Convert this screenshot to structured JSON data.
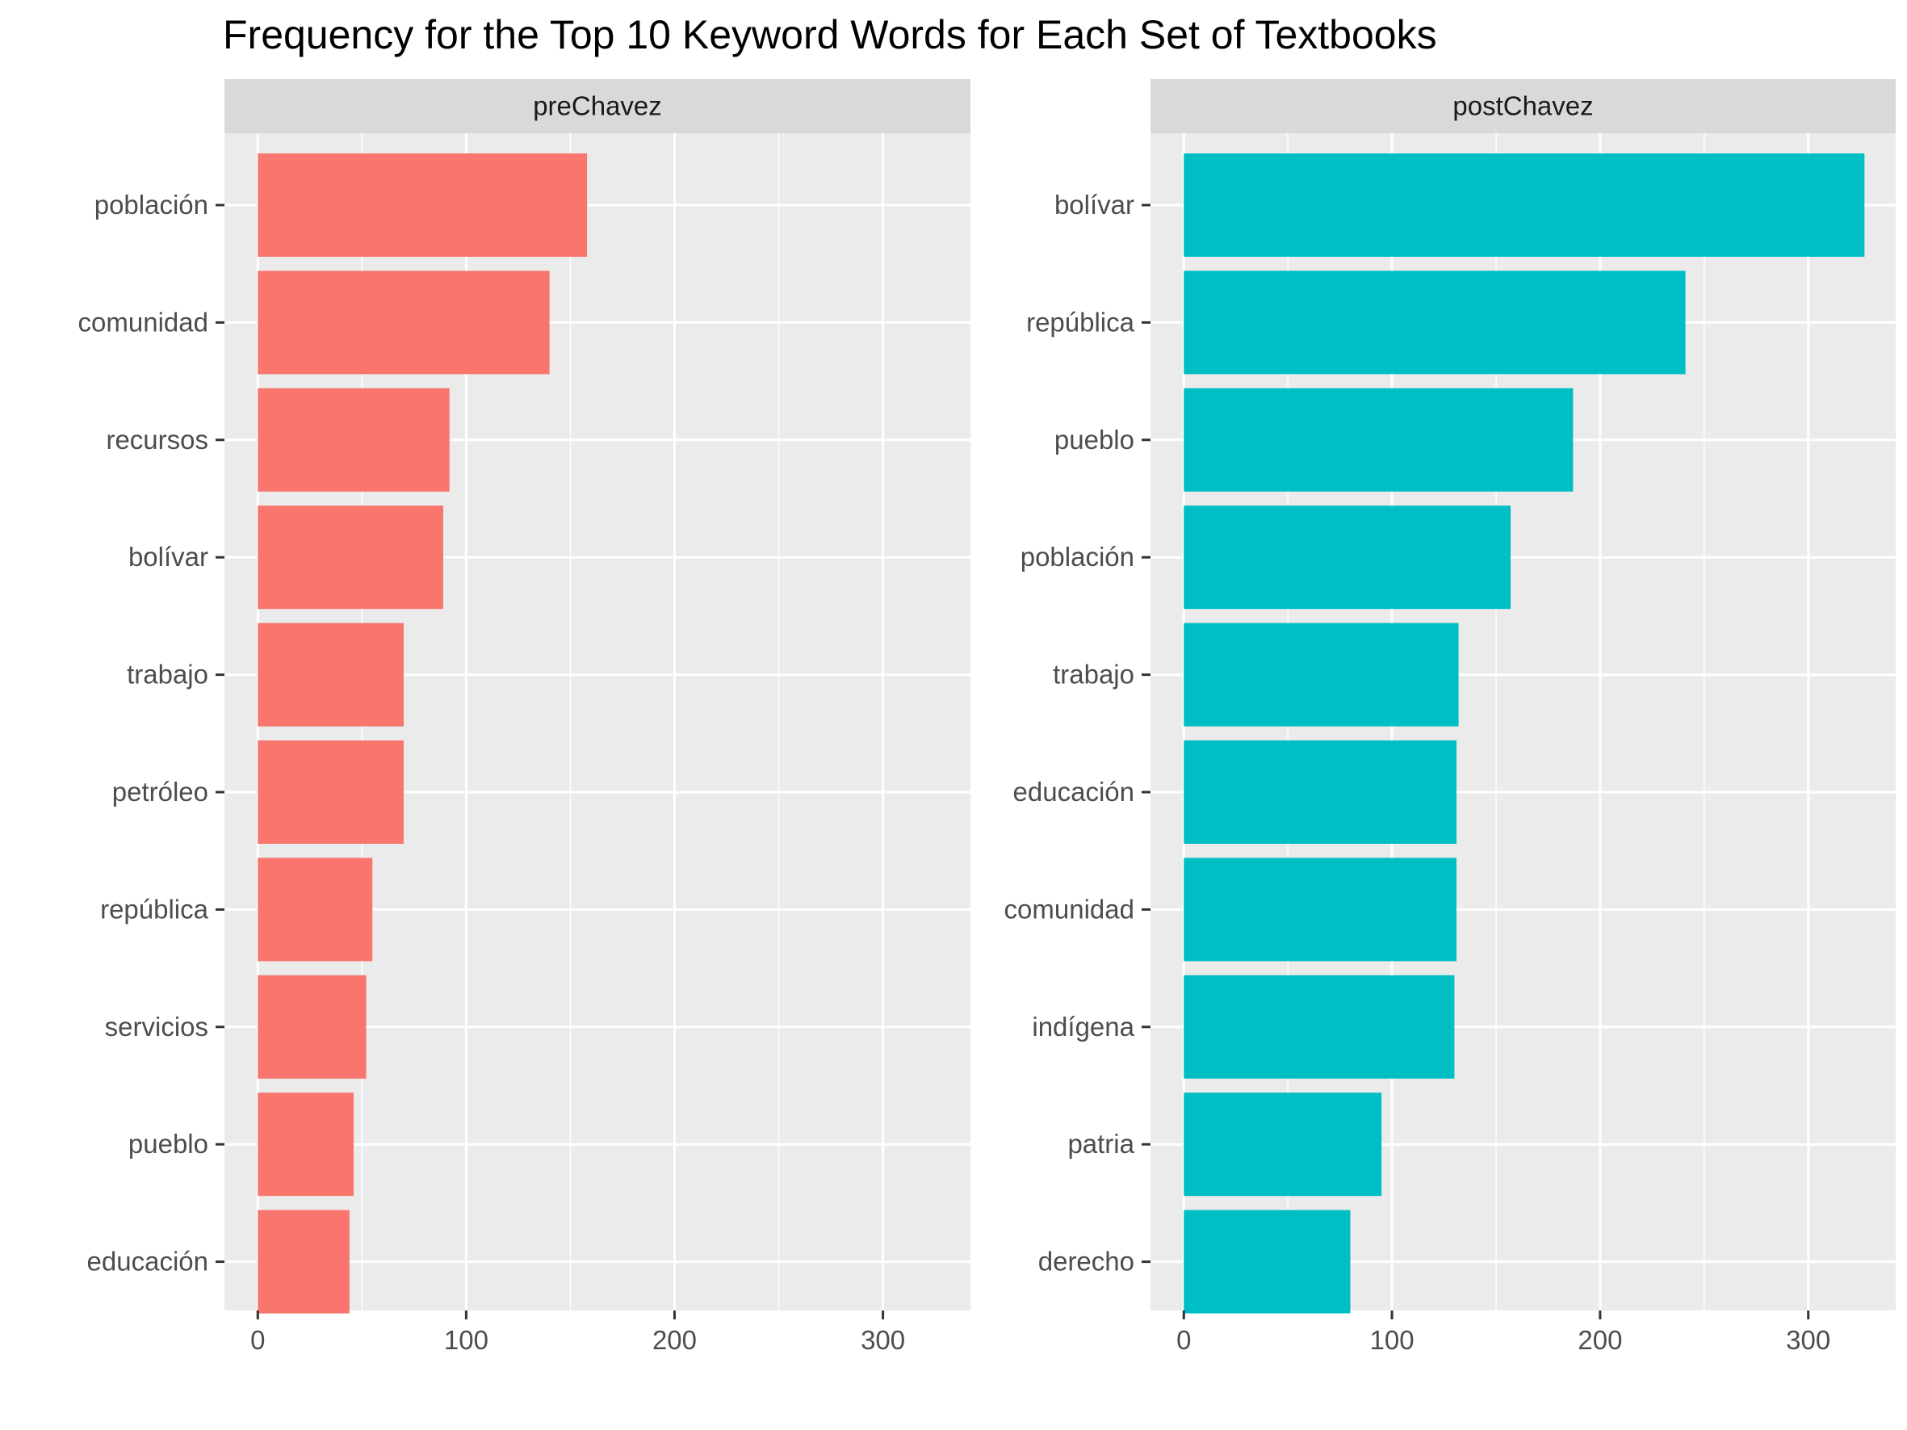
{
  "chart_data": {
    "type": "bar",
    "orientation": "horizontal",
    "title": "Frequency for the Top 10 Keyword Words for Each Set of Textbooks",
    "xlim": [
      -16,
      342
    ],
    "x_ticks": [
      0,
      100,
      200,
      300
    ],
    "grid": true,
    "facets": [
      {
        "name": "preChavez",
        "color": "#F8766D",
        "categories": [
          "población",
          "comunidad",
          "recursos",
          "bolívar",
          "trabajo",
          "petróleo",
          "república",
          "servicios",
          "pueblo",
          "educación"
        ],
        "values": [
          158,
          140,
          92,
          89,
          70,
          70,
          55,
          52,
          46,
          44
        ]
      },
      {
        "name": "postChavez",
        "color": "#00BFC4",
        "categories": [
          "bolívar",
          "república",
          "pueblo",
          "población",
          "trabajo",
          "educación",
          "comunidad",
          "indígena",
          "patria",
          "derecho"
        ],
        "values": [
          327,
          241,
          187,
          157,
          132,
          131,
          131,
          130,
          95,
          80
        ]
      }
    ]
  },
  "colors": {
    "panel_background": "#EBEBEB",
    "strip_background": "#D9D9D9",
    "grid": "#FFFFFF"
  }
}
